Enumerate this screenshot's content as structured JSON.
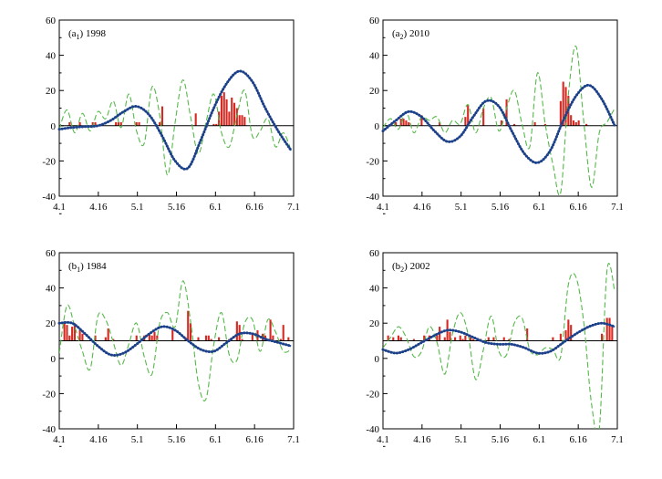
{
  "colors": {
    "bars": "#d42a23",
    "dashed": "#54b948",
    "smooth": "#2f5fad"
  },
  "chart_data": [
    {
      "type": "bar",
      "label_main": "(a",
      "label_sub": "1",
      "label_year": ") 1998",
      "ylim": [
        -40,
        60
      ],
      "yticks": [
        "-40",
        "-20",
        "0",
        "20",
        "40",
        "60"
      ],
      "xticks": [
        "4.1",
        "4.16",
        "5.1",
        "5.16",
        "6.1",
        "6.16",
        "7.1"
      ],
      "xlim": [
        0,
        91
      ],
      "baseline": 0,
      "bars": {
        "x": [
          4,
          8,
          13,
          14,
          22,
          23,
          24,
          30,
          31,
          39,
          40,
          53,
          60,
          61,
          62,
          63,
          64,
          65,
          66,
          67,
          68,
          69,
          70,
          71,
          72
        ],
        "values": [
          2,
          2,
          2,
          2,
          2,
          2,
          2,
          2,
          2,
          2,
          11,
          7,
          1,
          1,
          8,
          17,
          19,
          15,
          8,
          16,
          13,
          10,
          6,
          6,
          5
        ]
      },
      "dashed": {
        "x": [
          0,
          3,
          6,
          9,
          12,
          15,
          18,
          21,
          24,
          27,
          30,
          33,
          36,
          39,
          42,
          45,
          48,
          51,
          54,
          57,
          60,
          63,
          66,
          69,
          72,
          75,
          78,
          81,
          84,
          87,
          90
        ],
        "values": [
          -2,
          9,
          -4,
          7,
          -3,
          8,
          4,
          14,
          -1,
          18,
          -3,
          -10,
          22,
          6,
          -28,
          2,
          26,
          5,
          -16,
          2,
          18,
          -4,
          -12,
          6,
          20,
          -6,
          -3,
          4,
          -12,
          -4,
          -14
        ]
      },
      "smooth": {
        "x": [
          0,
          5,
          10,
          15,
          20,
          25,
          30,
          35,
          40,
          45,
          50,
          55,
          60,
          65,
          70,
          75,
          80,
          85,
          90
        ],
        "values": [
          -2,
          -1,
          -0.5,
          0,
          3,
          8,
          11,
          6,
          -6,
          -20,
          -24,
          -8,
          10,
          24,
          31,
          25,
          10,
          -3,
          -14
        ]
      }
    },
    {
      "type": "bar",
      "label_main": "(a",
      "label_sub": "2",
      "label_year": ") 2010",
      "ylim": [
        -40,
        60
      ],
      "yticks": [
        "-40",
        "-20",
        "0",
        "20",
        "40",
        "60"
      ],
      "xticks": [
        "4.1",
        "4.16",
        "5.1",
        "5.16",
        "6.1",
        "6.16",
        "7.1"
      ],
      "xlim": [
        0,
        91
      ],
      "baseline": 0,
      "bars": {
        "x": [
          5,
          7,
          8,
          9,
          10,
          15,
          22,
          32,
          33,
          39,
          46,
          48,
          51,
          59,
          63,
          69,
          70,
          71,
          72,
          73,
          74,
          75,
          76,
          79
        ],
        "values": [
          2,
          4,
          4,
          3,
          2,
          6,
          2,
          5,
          12,
          10,
          3,
          15,
          1,
          2,
          1,
          14,
          25,
          22,
          17,
          6,
          3,
          2,
          3,
          1
        ]
      },
      "dashed": {
        "x": [
          0,
          3,
          6,
          9,
          12,
          15,
          18,
          21,
          24,
          27,
          30,
          33,
          36,
          39,
          42,
          45,
          48,
          51,
          54,
          57,
          60,
          63,
          66,
          69,
          72,
          75,
          78,
          81,
          84,
          87,
          90
        ],
        "values": [
          -1,
          4,
          -2,
          8,
          -4,
          5,
          3,
          5,
          -4,
          3,
          1,
          12,
          -4,
          10,
          16,
          -3,
          10,
          20,
          1,
          -12,
          30,
          1,
          -22,
          -38,
          18,
          45,
          2,
          -35,
          -4,
          2,
          10
        ]
      },
      "smooth": {
        "x": [
          0,
          5,
          10,
          15,
          20,
          25,
          30,
          35,
          40,
          45,
          50,
          55,
          60,
          65,
          70,
          75,
          80,
          85,
          90
        ],
        "values": [
          -3,
          3,
          8,
          5,
          -3,
          -9,
          -6,
          5,
          14,
          11,
          -3,
          -16,
          -21,
          -14,
          3,
          17,
          23,
          15,
          0
        ]
      }
    },
    {
      "type": "bar",
      "label_main": "(b",
      "label_sub": "1",
      "label_year": ") 1984",
      "ylim": [
        -40,
        60
      ],
      "yticks": [
        "-40",
        "-20",
        "0",
        "20",
        "40",
        "60"
      ],
      "xticks": [
        "4.1",
        "4.16",
        "5.1",
        "5.16",
        "6.1",
        "6.16",
        "7.1"
      ],
      "xlim": [
        0,
        91
      ],
      "baseline": 10,
      "bars": {
        "x": [
          2,
          3,
          4,
          5,
          6,
          8,
          9,
          14,
          18,
          19,
          21,
          30,
          33,
          35,
          36,
          37,
          38,
          44,
          49,
          50,
          51,
          54,
          57,
          58,
          59,
          62,
          66,
          69,
          70,
          71,
          75,
          77,
          79,
          80,
          82,
          83,
          86,
          87,
          89
        ],
        "values": [
          21,
          19,
          13,
          18,
          20,
          16,
          14,
          13,
          12,
          17,
          11,
          13,
          13,
          14,
          13,
          15,
          13,
          16,
          12,
          27,
          20,
          12,
          13,
          13,
          11,
          12,
          11,
          21,
          19,
          11,
          14,
          16,
          14,
          13,
          22,
          13,
          11,
          19,
          12
        ]
      },
      "dashed": {
        "x": [
          0,
          3,
          6,
          9,
          12,
          15,
          18,
          21,
          24,
          27,
          30,
          33,
          36,
          39,
          42,
          45,
          48,
          51,
          54,
          57,
          60,
          63,
          66,
          69,
          72,
          75,
          78,
          81,
          84,
          87,
          90
        ],
        "values": [
          3,
          30,
          18,
          4,
          -6,
          24,
          22,
          9,
          -4,
          8,
          20,
          1,
          -9,
          20,
          26,
          18,
          44,
          21,
          -14,
          -23,
          8,
          26,
          2,
          -1,
          20,
          22,
          4,
          22,
          15,
          4,
          5
        ]
      },
      "smooth": {
        "x": [
          0,
          5,
          10,
          15,
          20,
          25,
          30,
          35,
          40,
          45,
          50,
          55,
          60,
          65,
          70,
          75,
          80,
          85,
          90
        ],
        "values": [
          20,
          20,
          14,
          7,
          2,
          3,
          8,
          14,
          18,
          16,
          10,
          5,
          4,
          9,
          14,
          14,
          11,
          9,
          7
        ]
      }
    },
    {
      "type": "bar",
      "label_main": "(b",
      "label_sub": "2",
      "label_year": ") 2002",
      "ylim": [
        -40,
        60
      ],
      "yticks": [
        "-40",
        "-20",
        "0",
        "20",
        "40",
        "60"
      ],
      "xticks": [
        "4.1",
        "4.16",
        "5.1",
        "5.16",
        "6.1",
        "6.16",
        "7.1"
      ],
      "xlim": [
        0,
        91
      ],
      "baseline": 10,
      "bars": {
        "x": [
          2,
          4,
          6,
          7,
          12,
          16,
          18,
          21,
          22,
          24,
          25,
          26,
          28,
          30,
          31,
          32,
          34,
          35,
          37,
          38,
          41,
          43,
          47,
          49,
          56,
          66,
          69,
          71,
          72,
          73,
          85,
          87,
          88,
          89
        ],
        "values": [
          13,
          12,
          13,
          12,
          11,
          13,
          13,
          13,
          18,
          12,
          22,
          15,
          12,
          13,
          11,
          13,
          12,
          11,
          11,
          11,
          12,
          12,
          12,
          11,
          17,
          12,
          14,
          16,
          22,
          19,
          14,
          23,
          23,
          18
        ]
      },
      "dashed": {
        "x": [
          0,
          3,
          6,
          9,
          12,
          15,
          18,
          21,
          24,
          27,
          30,
          33,
          36,
          39,
          42,
          45,
          48,
          51,
          54,
          57,
          60,
          63,
          66,
          69,
          72,
          75,
          78,
          81,
          84,
          87,
          90
        ],
        "values": [
          6,
          12,
          18,
          12,
          1,
          4,
          18,
          9,
          -9,
          14,
          26,
          14,
          -12,
          5,
          24,
          4,
          2,
          20,
          23,
          5,
          2,
          6,
          5,
          1,
          42,
          46,
          20,
          -26,
          -40,
          50,
          38
        ]
      },
      "smooth": {
        "x": [
          0,
          5,
          10,
          15,
          20,
          25,
          30,
          35,
          40,
          45,
          50,
          55,
          60,
          65,
          70,
          75,
          80,
          85,
          90
        ],
        "values": [
          5,
          3,
          5,
          9,
          13,
          16,
          15,
          12,
          9,
          8,
          8,
          6,
          3,
          4,
          9,
          14,
          18,
          20,
          18
        ]
      }
    }
  ]
}
